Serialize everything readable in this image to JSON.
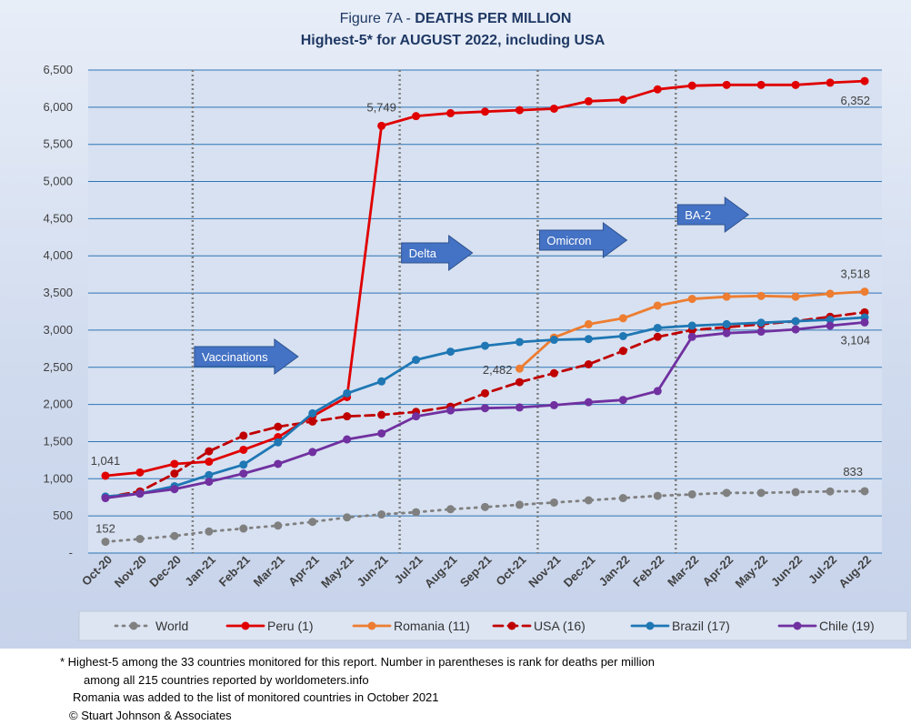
{
  "chart_data": {
    "type": "line",
    "title_prefix": "Figure 7A - ",
    "title_bold": "DEATHS PER MILLION",
    "subtitle": "Highest-5* for  AUGUST 2022, including USA",
    "categories": [
      "Oct-20",
      "Nov-20",
      "Dec-20",
      "Jan-21",
      "Feb-21",
      "Mar-21",
      "Apr-21",
      "May-21",
      "Jun-21",
      "Jul-21",
      "Aug-21",
      "Sep-21",
      "Oct-21",
      "Nov-21",
      "Dec-21",
      "Jan-22",
      "Feb-22",
      "Mar-22",
      "Apr-22",
      "May-22",
      "Jun-22",
      "Jul-22",
      "Aug-22"
    ],
    "ylim": [
      0,
      6500
    ],
    "y_ticks": [
      "-",
      "500",
      "1,000",
      "1,500",
      "2,000",
      "2,500",
      "3,000",
      "3,500",
      "4,000",
      "4,500",
      "5,000",
      "5,500",
      "6,000",
      "6,500"
    ],
    "grid": "horizontal",
    "legend_position": "bottom",
    "series": [
      {
        "name": "World",
        "color": "#808080",
        "dash": "dotted",
        "values": [
          152,
          190,
          230,
          290,
          330,
          370,
          420,
          480,
          520,
          550,
          590,
          620,
          650,
          680,
          710,
          740,
          770,
          790,
          810,
          810,
          820,
          830,
          833
        ]
      },
      {
        "name": "Peru (1)",
        "color": "#e00000",
        "dash": "solid",
        "values": [
          1041,
          1085,
          1200,
          1230,
          1390,
          1560,
          1840,
          2100,
          5749,
          5880,
          5920,
          5940,
          5960,
          5980,
          6080,
          6100,
          6240,
          6290,
          6300,
          6300,
          6300,
          6330,
          6352
        ]
      },
      {
        "name": "Romania (11)",
        "color": "#ed7d31",
        "dash": "solid",
        "values": [
          null,
          null,
          null,
          null,
          null,
          null,
          null,
          null,
          null,
          null,
          null,
          null,
          2482,
          2900,
          3080,
          3160,
          3330,
          3420,
          3450,
          3460,
          3450,
          3490,
          3518
        ]
      },
      {
        "name": "USA (16)",
        "color": "#c00000",
        "dash": "dashed",
        "values": [
          750,
          830,
          1070,
          1370,
          1580,
          1700,
          1770,
          1840,
          1860,
          1900,
          1970,
          2150,
          2300,
          2420,
          2540,
          2720,
          2910,
          3000,
          3040,
          3080,
          3120,
          3180,
          3240
        ]
      },
      {
        "name": "Brazil (17)",
        "color": "#1f77b4",
        "dash": "solid",
        "values": [
          760,
          800,
          900,
          1050,
          1190,
          1490,
          1880,
          2150,
          2310,
          2600,
          2710,
          2790,
          2840,
          2870,
          2880,
          2920,
          3030,
          3060,
          3080,
          3100,
          3120,
          3140,
          3170
        ]
      },
      {
        "name": "Chile (19)",
        "color": "#7030a0",
        "dash": "solid",
        "values": [
          740,
          800,
          860,
          960,
          1070,
          1200,
          1360,
          1530,
          1610,
          1840,
          1920,
          1950,
          1960,
          1990,
          2030,
          2060,
          2180,
          2910,
          2960,
          2980,
          3010,
          3060,
          3104
        ]
      }
    ],
    "data_labels": [
      {
        "series": "Peru (1)",
        "text": "1,041"
      },
      {
        "series": "World",
        "text": "152"
      },
      {
        "series": "Peru (1)",
        "text": "5,749"
      },
      {
        "series": "Peru (1)",
        "text": "6,352"
      },
      {
        "series": "Romania (11)",
        "text": "2,482"
      },
      {
        "series": "Romania (11)",
        "text": "3,518"
      },
      {
        "series": "Chile (19)",
        "text": "3,104"
      },
      {
        "series": "World",
        "text": "833"
      }
    ],
    "annotations": [
      {
        "label": "Vaccinations",
        "month": "Jan-21"
      },
      {
        "label": "Delta",
        "month": "Jul-21"
      },
      {
        "label": "Omicron",
        "month": "Nov-21"
      },
      {
        "label": "BA-2",
        "month": "Mar-22"
      }
    ]
  },
  "footnotes": [
    "* Highest-5 among the 33 countries monitored for this report. Number in parentheses is rank for deaths per million",
    "among all 215 countries reported by worldometers.info",
    "Romania was added to the list of monitored countries in October 2021",
    "© Stuart Johnson & Associates"
  ],
  "colors": {
    "plot_bg": "#d7e1f1",
    "grid": "#2e75b6",
    "arrow": "#4472c4"
  }
}
